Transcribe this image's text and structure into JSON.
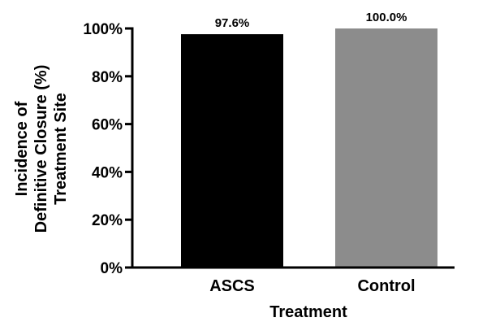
{
  "chart_data": {
    "type": "bar",
    "categories": [
      "ASCS",
      "Control"
    ],
    "values": [
      97.6,
      100.0
    ],
    "data_labels": [
      "97.6%",
      "100.0%"
    ],
    "bar_colors": [
      "#000000",
      "#8c8c8c"
    ],
    "ylim": [
      0,
      100
    ],
    "yticks": [
      0,
      20,
      40,
      60,
      80,
      100
    ],
    "ytick_labels": [
      "0%",
      "20%",
      "40%",
      "60%",
      "80%",
      "100%"
    ],
    "xlabel": "Treatment",
    "ylabel_lines": [
      "Incidence of",
      "Definitive Closure (%)",
      "Treatment Site"
    ],
    "grid": false,
    "legend": "none"
  }
}
